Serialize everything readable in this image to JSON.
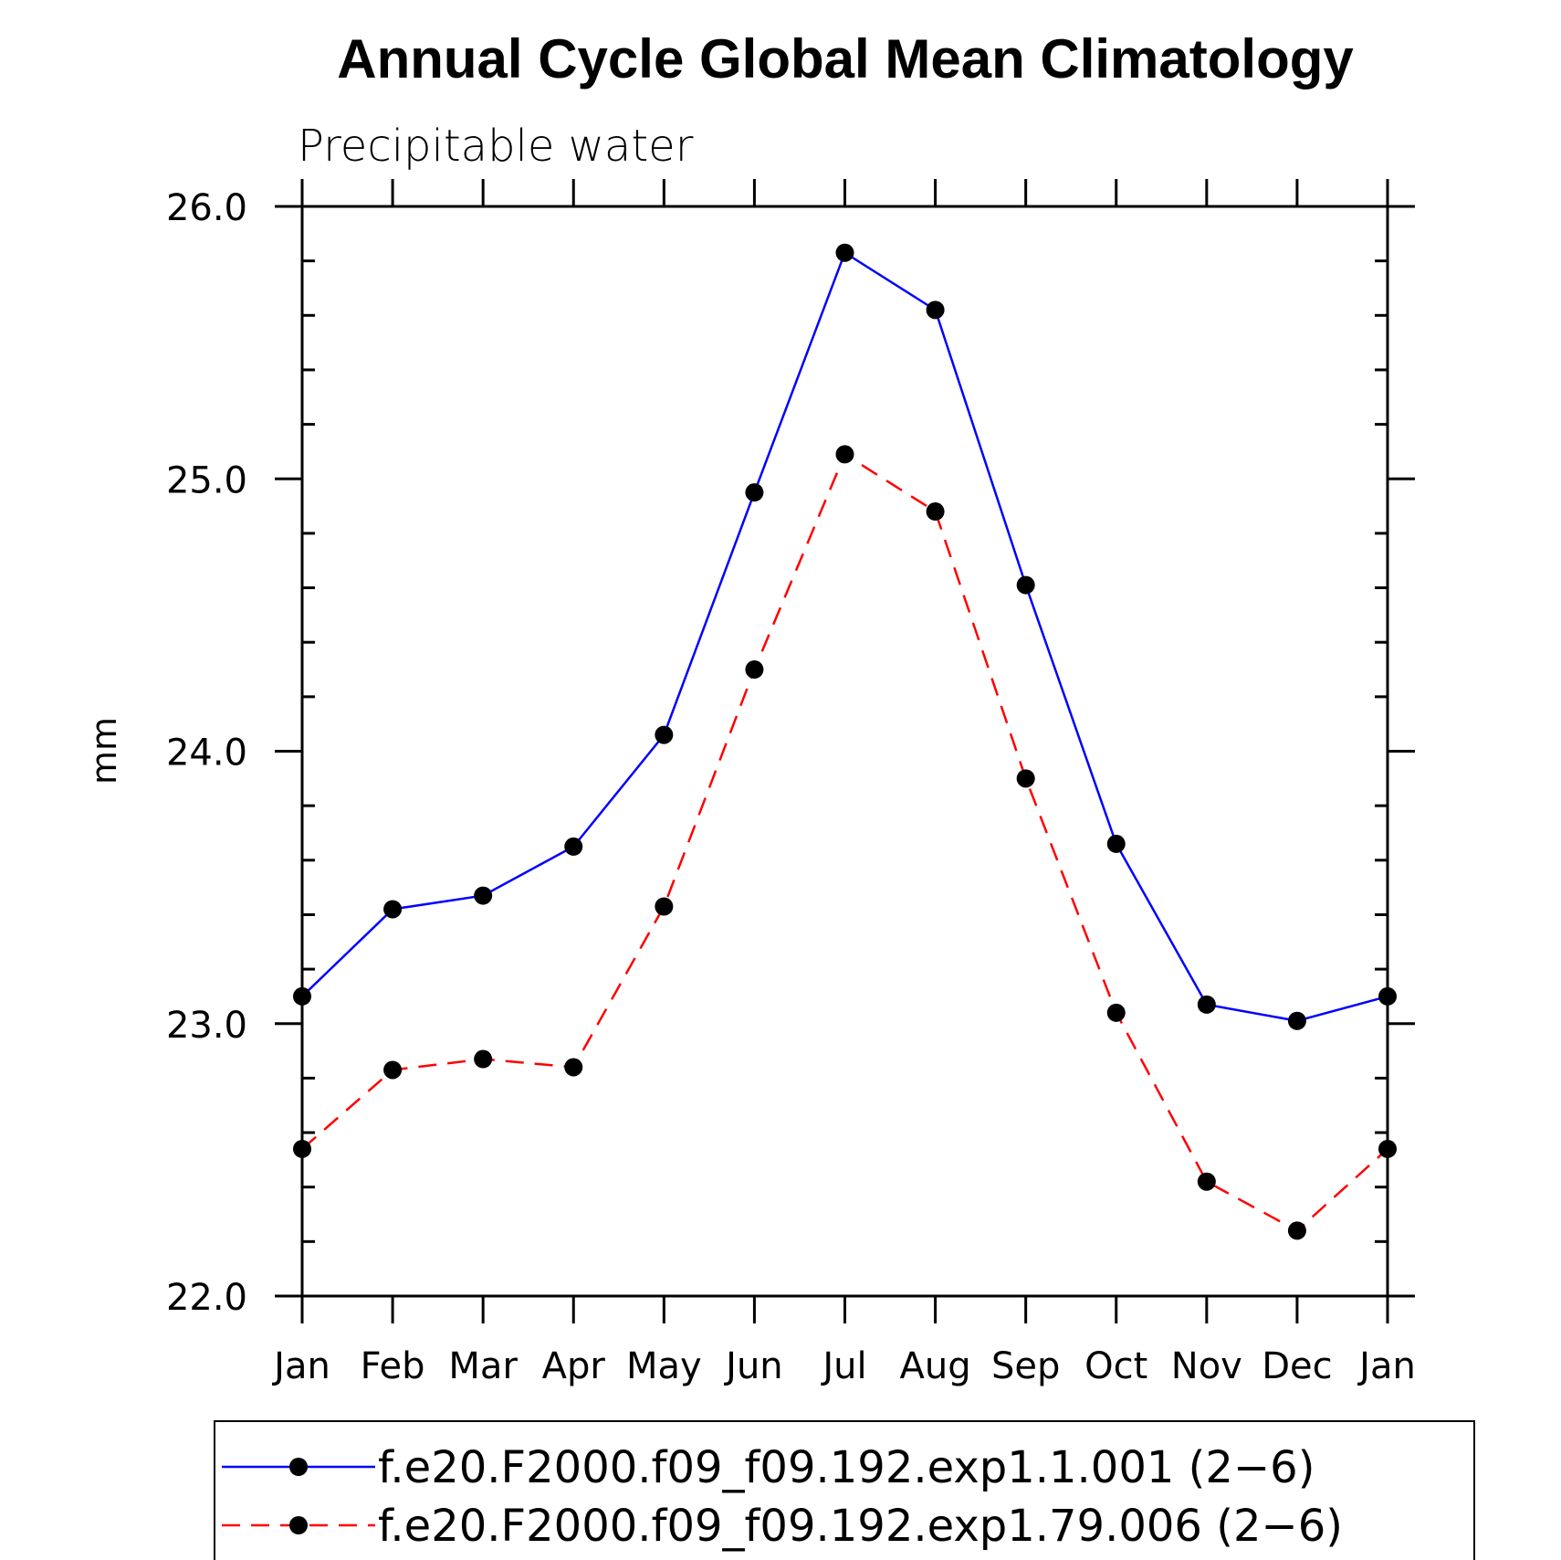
{
  "chart_data": {
    "type": "line",
    "title": "Annual Cycle Global Mean Climatology",
    "subtitle": "Precipitable water",
    "xlabel": "",
    "ylabel": "mm",
    "categories": [
      "Jan",
      "Feb",
      "Mar",
      "Apr",
      "May",
      "Jun",
      "Jul",
      "Aug",
      "Sep",
      "Oct",
      "Nov",
      "Dec",
      "Jan"
    ],
    "ylim": [
      22.0,
      26.0
    ],
    "yticks": [
      "22.0",
      "23.0",
      "24.0",
      "25.0",
      "26.0"
    ],
    "ytick_values": [
      22.0,
      23.0,
      24.0,
      25.0,
      26.0
    ],
    "y_minor_step": 0.2,
    "grid": false,
    "legend_position": "bottom",
    "series": [
      {
        "name": "f.e20.F2000.f09_f09.192.exp1.1.001 (2−6)",
        "color": "#0000ff",
        "dash": "solid",
        "marker": "filled-circle",
        "values": [
          23.1,
          23.42,
          23.47,
          23.65,
          24.06,
          24.95,
          25.83,
          25.62,
          24.61,
          23.66,
          23.07,
          23.01,
          23.1
        ]
      },
      {
        "name": "f.e20.F2000.f09_f09.192.exp1.79.006 (2−6)",
        "color": "#ff0000",
        "dash": "dashed",
        "marker": "filled-circle",
        "values": [
          22.54,
          22.83,
          22.87,
          22.84,
          23.43,
          24.3,
          25.09,
          24.88,
          23.9,
          23.04,
          22.42,
          22.24,
          22.54
        ]
      }
    ]
  }
}
